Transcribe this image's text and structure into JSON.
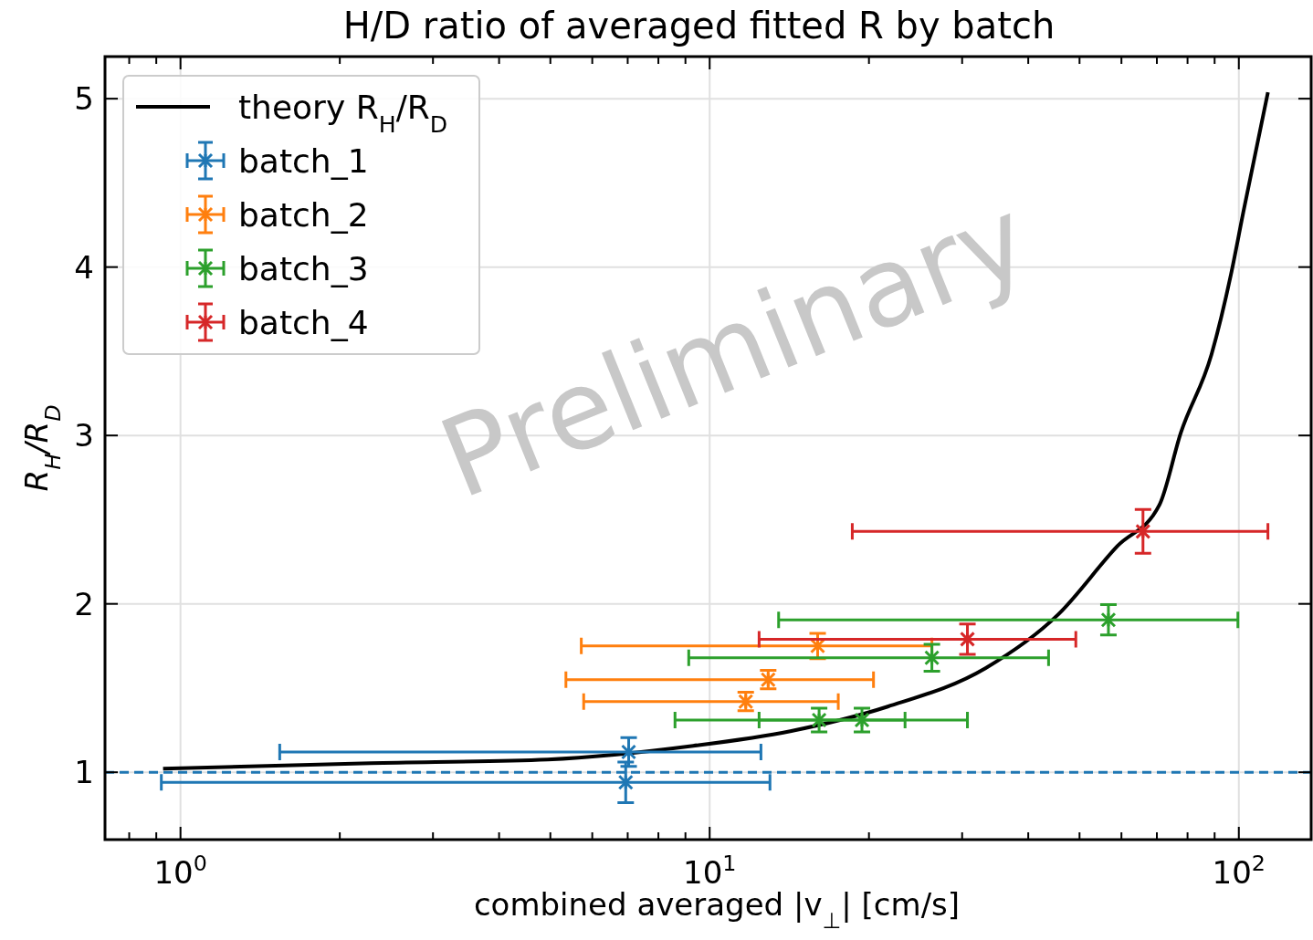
{
  "chart_data": {
    "type": "scatter",
    "title": "H/D ratio of averaged fitted R by batch",
    "xlabel": "combined averaged |v$_{⊥}$| [cm/s]",
    "ylabel": "R$_{H}$/R$_{D}$",
    "log": "x",
    "grid": true,
    "legend": "top left",
    "xlim": [
      0.72,
      137
    ],
    "ylim": [
      0.6,
      5.25
    ],
    "xticks": [
      {
        "value": 0.8,
        "label": null
      },
      {
        "value": 0.9,
        "label": null
      },
      {
        "value": 1,
        "label": "10$^{0}$"
      },
      {
        "value": 2,
        "label": null
      },
      {
        "value": 3,
        "label": null
      },
      {
        "value": 4,
        "label": null
      },
      {
        "value": 5,
        "label": null
      },
      {
        "value": 6,
        "label": null
      },
      {
        "value": 7,
        "label": null
      },
      {
        "value": 8,
        "label": null
      },
      {
        "value": 9,
        "label": null
      },
      {
        "value": 10,
        "label": "10$^{1}$"
      },
      {
        "value": 20,
        "label": null
      },
      {
        "value": 30,
        "label": null
      },
      {
        "value": 40,
        "label": null
      },
      {
        "value": 50,
        "label": null
      },
      {
        "value": 60,
        "label": null
      },
      {
        "value": 70,
        "label": null
      },
      {
        "value": 80,
        "label": null
      },
      {
        "value": 90,
        "label": null
      },
      {
        "value": 100,
        "label": "10$^{2}$"
      }
    ],
    "yticks": [
      1,
      2,
      3,
      4,
      5
    ],
    "ref_lines": [
      {
        "axis": "y",
        "value": 1,
        "label": null,
        "color": "#1f77b4",
        "line_style": "dashed"
      }
    ],
    "annotations": [
      "Preliminary"
    ],
    "series": [
      {
        "name": "theory R$_{H}$/R$_{D}$",
        "type": "line",
        "color": "#000000",
        "marker": "none",
        "x": [
          0.927,
          2.29,
          4.94,
          9.31,
          14.2,
          21.7,
          33.2,
          45.6,
          59.0,
          70.8,
          77.7,
          88.8,
          96.6,
          102,
          113.5
        ],
        "values": [
          1.022,
          1.054,
          1.076,
          1.157,
          1.244,
          1.39,
          1.618,
          1.938,
          2.344,
          2.588,
          3.016,
          3.482,
          3.954,
          4.328,
          5.038
        ]
      },
      {
        "name": "batch_1",
        "color": "#1f77b4",
        "marker": "cross",
        "x": [
          7.03,
          6.94
        ],
        "values": [
          1.12,
          0.94
        ],
        "errors": [
          0.085,
          0.12
        ],
        "xerrors": [
          [
            1.54,
            12.5
          ],
          [
            0.92,
            13.0
          ]
        ]
      },
      {
        "name": "batch_2",
        "color": "#ff7f0e",
        "marker": "cross",
        "x": [
          16.0,
          12.9,
          11.7
        ],
        "values": [
          1.75,
          1.55,
          1.42
        ],
        "errors": [
          0.075,
          0.055,
          0.055
        ],
        "xerrors": [
          [
            5.72,
            26.3
          ],
          [
            5.35,
            20.4
          ],
          [
            5.78,
            17.5
          ]
        ]
      },
      {
        "name": "batch_3",
        "color": "#2ca02c",
        "marker": "cross",
        "x": [
          56.7,
          26.3,
          16.1,
          19.4
        ],
        "values": [
          1.905,
          1.68,
          1.31,
          1.31
        ],
        "errors": [
          0.09,
          0.08,
          0.07,
          0.07
        ],
        "xerrors": [
          [
            13.5,
            99.6
          ],
          [
            9.13,
            43.7
          ],
          [
            8.6,
            23.4
          ],
          [
            12.4,
            30.7
          ]
        ]
      },
      {
        "name": "batch_4",
        "color": "#d62728",
        "marker": "cross",
        "x": [
          65.9,
          30.7
        ],
        "values": [
          2.43,
          1.79
        ],
        "errors": [
          0.13,
          0.09
        ],
        "xerrors": [
          [
            18.6,
            113.5
          ],
          [
            12.4,
            49.2
          ]
        ]
      }
    ]
  }
}
